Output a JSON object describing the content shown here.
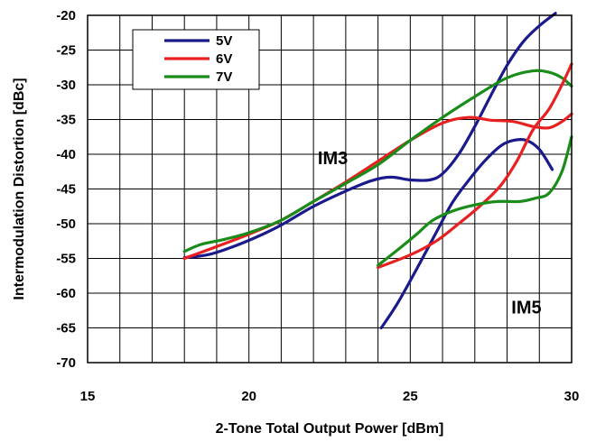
{
  "chart_data": {
    "type": "line",
    "title": "",
    "xlabel": "2-Tone Total Output Power [dBm]",
    "ylabel": "Intermodulation Distortion [dBc]",
    "xlim": [
      15,
      30
    ],
    "ylim": [
      -70,
      -20
    ],
    "xticks": [
      "15",
      "20",
      "25",
      "30"
    ],
    "yticks": [
      "-20",
      "-25",
      "-30",
      "-35",
      "-40",
      "-45",
      "-50",
      "-55",
      "-60",
      "-65",
      "-70"
    ],
    "grid": true,
    "legend": {
      "placement": "top-left",
      "entries": [
        "5V",
        "6V",
        "7V"
      ]
    },
    "annotations": [
      {
        "text": "IM3",
        "x": 22.6,
        "y": -40.5
      },
      {
        "text": "IM5",
        "x": 28.6,
        "y": -62
      }
    ],
    "series": [
      {
        "name": "5V",
        "group": "IM3",
        "color": "#1a1a8c",
        "x": [
          18.0,
          18.7,
          19.4,
          20.2,
          21.0,
          22.0,
          23.0,
          23.8,
          24.4,
          25.0,
          25.6,
          26.0,
          26.5,
          27.0,
          27.5,
          28.0,
          28.5,
          29.0,
          29.5
        ],
        "y": [
          -54.9,
          -54.5,
          -53.5,
          -52.0,
          -50.2,
          -47.5,
          -45.3,
          -43.8,
          -43.3,
          -43.7,
          -43.7,
          -42.8,
          -40.0,
          -36.0,
          -31.5,
          -27.2,
          -23.8,
          -21.5,
          -19.7
        ]
      },
      {
        "name": "6V",
        "group": "IM3",
        "color": "#e82020",
        "x": [
          18.0,
          19.0,
          20.0,
          21.0,
          22.0,
          23.0,
          24.0,
          25.0,
          26.0,
          26.8,
          27.5,
          28.2,
          28.8,
          29.3,
          29.7,
          30.0
        ],
        "y": [
          -55.0,
          -53.3,
          -51.5,
          -49.5,
          -46.8,
          -44.0,
          -41.0,
          -38.0,
          -35.5,
          -34.7,
          -35.1,
          -35.3,
          -36.0,
          -36.2,
          -35.3,
          -34.2
        ]
      },
      {
        "name": "7V",
        "group": "IM3",
        "color": "#1a8c1a",
        "x": [
          18.0,
          18.5,
          19.2,
          20.0,
          21.0,
          22.0,
          23.0,
          24.0,
          25.0,
          26.0,
          27.0,
          28.0,
          28.8,
          29.3,
          29.7,
          30.0
        ],
        "y": [
          -54.0,
          -53.0,
          -52.3,
          -51.3,
          -49.5,
          -46.8,
          -44.2,
          -41.5,
          -38.0,
          -34.7,
          -31.7,
          -29.0,
          -28.0,
          -28.2,
          -29.0,
          -30.2
        ]
      },
      {
        "name": "5V",
        "group": "IM5",
        "color": "#1a1a8c",
        "x": [
          24.1,
          24.6,
          25.2,
          25.8,
          26.3,
          26.8,
          27.3,
          27.8,
          28.2,
          28.6,
          29.0,
          29.4
        ],
        "y": [
          -65.0,
          -61.5,
          -56.5,
          -51.3,
          -47.0,
          -43.8,
          -41.0,
          -38.8,
          -38.0,
          -38.0,
          -39.3,
          -42.2
        ]
      },
      {
        "name": "6V",
        "group": "IM5",
        "color": "#e82020",
        "x": [
          24.0,
          25.0,
          25.8,
          26.5,
          27.2,
          27.8,
          28.3,
          28.8,
          29.3,
          29.7,
          30.0
        ],
        "y": [
          -56.3,
          -54.5,
          -52.5,
          -50.0,
          -47.3,
          -44.5,
          -41.0,
          -36.5,
          -33.5,
          -30.0,
          -27.0
        ]
      },
      {
        "name": "7V",
        "group": "IM5",
        "color": "#1a8c1a",
        "x": [
          24.0,
          24.6,
          25.2,
          25.7,
          26.3,
          27.0,
          27.7,
          28.4,
          28.9,
          29.3,
          29.7,
          30.0
        ],
        "y": [
          -56.0,
          -53.8,
          -51.5,
          -49.5,
          -48.2,
          -47.3,
          -46.8,
          -46.8,
          -46.3,
          -45.6,
          -42.5,
          -37.5
        ]
      }
    ]
  }
}
